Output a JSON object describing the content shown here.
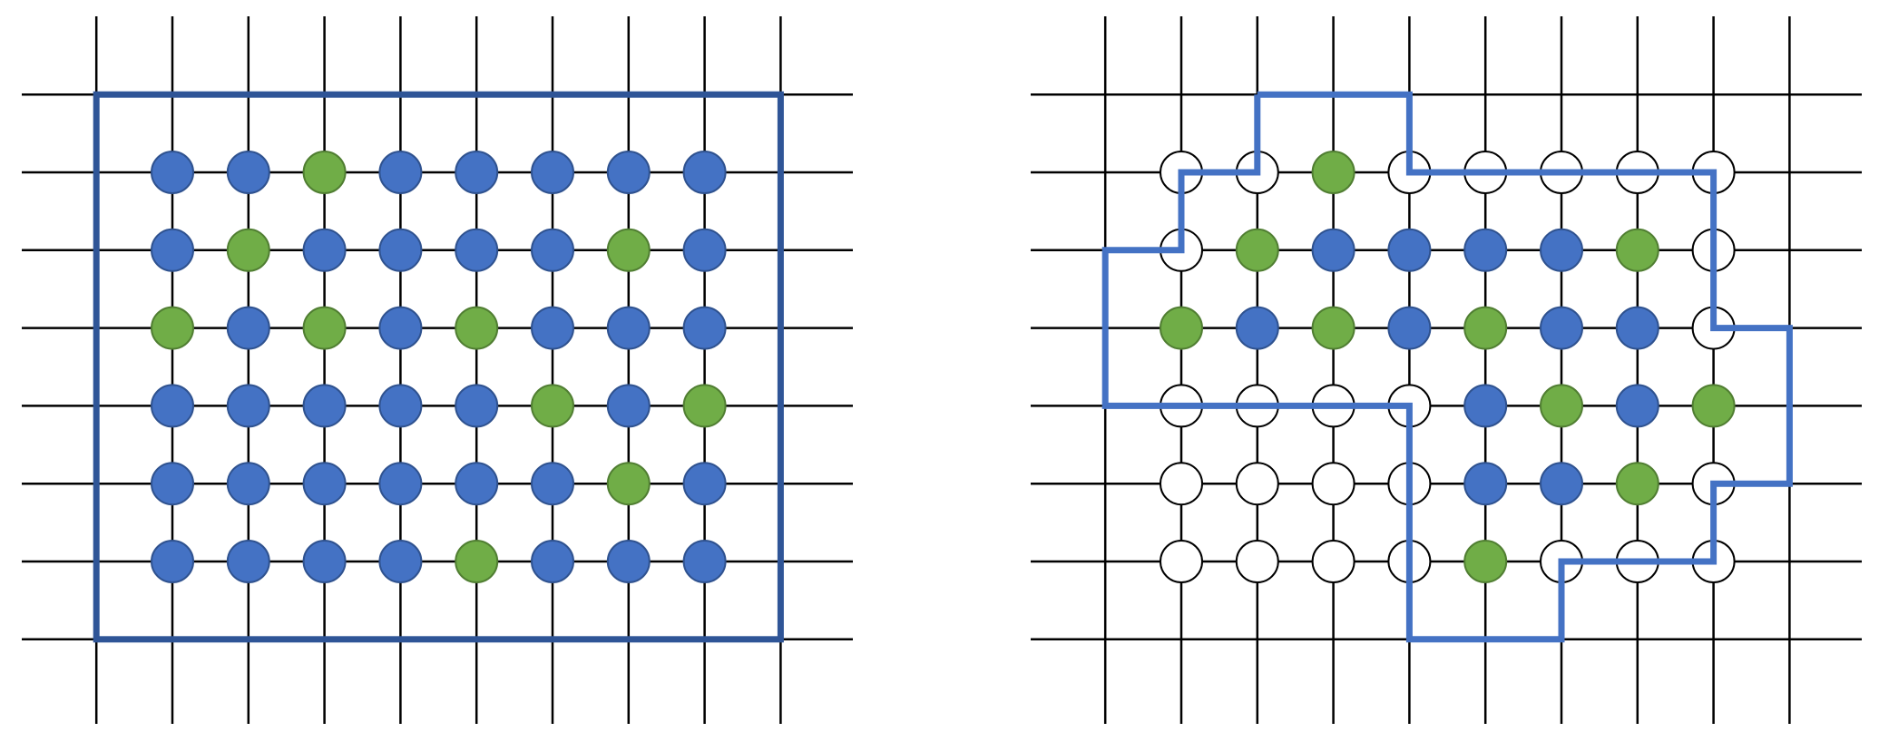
{
  "colors": {
    "blue": "#4472c4",
    "blue_stroke": "#2f528f",
    "green": "#70ad47",
    "green_stroke": "#507e32",
    "empty": "#ffffff",
    "empty_stroke": "#000000",
    "left_frame": "#2f5597",
    "right_boundary": "#4472c4"
  },
  "diagrams": [
    {
      "id": "left",
      "cells": [
        [
          "B",
          "B",
          "G",
          "B",
          "B",
          "B",
          "B",
          "B"
        ],
        [
          "B",
          "G",
          "B",
          "B",
          "B",
          "B",
          "G",
          "B"
        ],
        [
          "G",
          "B",
          "G",
          "B",
          "G",
          "B",
          "B",
          "B"
        ],
        [
          "B",
          "B",
          "B",
          "B",
          "B",
          "G",
          "B",
          "G"
        ],
        [
          "B",
          "B",
          "B",
          "B",
          "B",
          "B",
          "G",
          "B"
        ],
        [
          "B",
          "B",
          "B",
          "B",
          "G",
          "B",
          "B",
          "B"
        ]
      ],
      "boundary": {
        "type": "rectangle",
        "from": [
          -1,
          -1
        ],
        "to": [
          8,
          6
        ]
      }
    },
    {
      "id": "right",
      "cells": [
        [
          "E",
          "E",
          "G",
          "E",
          "E",
          "E",
          "E",
          "E"
        ],
        [
          "E",
          "G",
          "B",
          "B",
          "B",
          "B",
          "G",
          "E"
        ],
        [
          "G",
          "B",
          "G",
          "B",
          "G",
          "B",
          "B",
          "E"
        ],
        [
          "E",
          "E",
          "E",
          "E",
          "B",
          "G",
          "B",
          "G"
        ],
        [
          "E",
          "E",
          "E",
          "E",
          "B",
          "B",
          "G",
          "E"
        ],
        [
          "E",
          "E",
          "E",
          "E",
          "G",
          "E",
          "E",
          "E"
        ]
      ],
      "boundary": {
        "type": "path",
        "points": [
          [
            1,
            -1
          ],
          [
            3,
            -1
          ],
          [
            3,
            0
          ],
          [
            7,
            0
          ],
          [
            7,
            2
          ],
          [
            8,
            2
          ],
          [
            8,
            4
          ],
          [
            7,
            4
          ],
          [
            7,
            5
          ],
          [
            5,
            5
          ],
          [
            5,
            6
          ],
          [
            3,
            6
          ],
          [
            3,
            3
          ],
          [
            -1,
            3
          ],
          [
            -1,
            1
          ],
          [
            0,
            1
          ],
          [
            0,
            0
          ],
          [
            1,
            0
          ],
          [
            1,
            -1
          ]
        ]
      }
    }
  ]
}
